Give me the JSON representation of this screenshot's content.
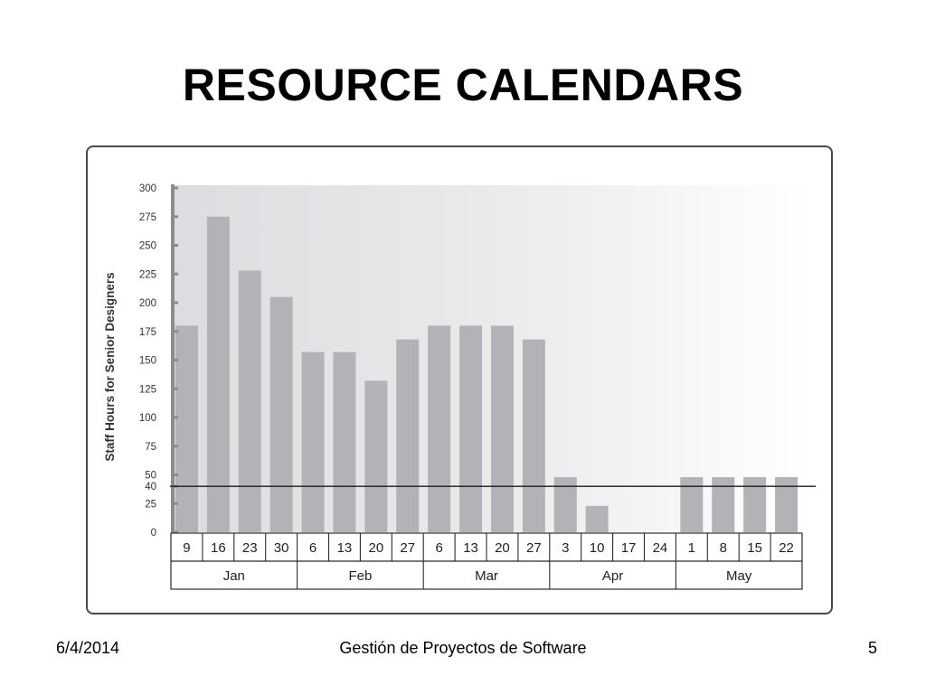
{
  "slide": {
    "title": "RESOURCE CALENDARS"
  },
  "footer": {
    "date": "6/4/2014",
    "center": "Gestión de Proyectos de Software",
    "page_number": "5"
  },
  "colors": {
    "bar": "#b1b3b6",
    "axis": "#8a8c8f",
    "frame": "#4a4a4a",
    "threshold_line": "#1a1a1a",
    "grid_table": "#2b2b2b"
  },
  "chart_data": {
    "type": "bar",
    "title": "",
    "ylabel": "Staff Hours for Senior Designers",
    "xlabel": "",
    "ylim": [
      0,
      300
    ],
    "yticks": [
      0,
      25,
      50,
      75,
      100,
      125,
      150,
      175,
      200,
      225,
      250,
      275,
      300
    ],
    "ytick_extra": [
      40
    ],
    "threshold": 40,
    "grid": false,
    "categories": [
      "9",
      "16",
      "23",
      "30",
      "6",
      "13",
      "20",
      "27",
      "6",
      "13",
      "20",
      "27",
      "3",
      "10",
      "17",
      "24",
      "1",
      "8",
      "15",
      "22"
    ],
    "months": [
      {
        "label": "Jan",
        "span": 4
      },
      {
        "label": "Feb",
        "span": 4
      },
      {
        "label": "Mar",
        "span": 4
      },
      {
        "label": "Apr",
        "span": 4
      },
      {
        "label": "May",
        "span": 4
      }
    ],
    "values": [
      180,
      275,
      228,
      205,
      157,
      157,
      132,
      168,
      180,
      180,
      180,
      168,
      48,
      23,
      0,
      0,
      48,
      48,
      48,
      48
    ]
  }
}
